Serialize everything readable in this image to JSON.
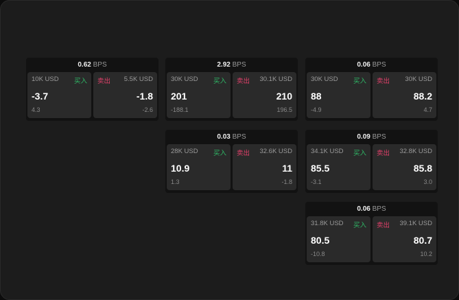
{
  "unit": "BPS",
  "buy_label": "买入",
  "sell_label": "卖出",
  "colors": {
    "buy": "#2fb866",
    "sell": "#e0406a"
  },
  "widgets": [
    {
      "spread": "0.62",
      "bid": {
        "size": "10K USD",
        "price": "-3.7",
        "change": "4.3"
      },
      "ask": {
        "size": "5.5K USD",
        "price": "-1.8",
        "change": "-2.6"
      }
    },
    {
      "spread": "2.92",
      "bid": {
        "size": "30K USD",
        "price": "201",
        "change": "-188.1"
      },
      "ask": {
        "size": "30.1K USD",
        "price": "210",
        "change": "196.5"
      }
    },
    {
      "spread": "0.06",
      "bid": {
        "size": "30K USD",
        "price": "88",
        "change": "-4.9"
      },
      "ask": {
        "size": "30K USD",
        "price": "88.2",
        "change": "4.7"
      }
    },
    {
      "spread": "0.03",
      "bid": {
        "size": "28K USD",
        "price": "10.9",
        "change": "1.3"
      },
      "ask": {
        "size": "32.6K USD",
        "price": "11",
        "change": "-1.8"
      }
    },
    {
      "spread": "0.09",
      "bid": {
        "size": "34.1K USD",
        "price": "85.5",
        "change": "-3.1"
      },
      "ask": {
        "size": "32.8K USD",
        "price": "85.8",
        "change": "3.0"
      }
    },
    {
      "spread": "0.06",
      "bid": {
        "size": "31.8K USD",
        "price": "80.5",
        "change": "-10.8"
      },
      "ask": {
        "size": "39.1K USD",
        "price": "80.7",
        "change": "10.2"
      }
    }
  ]
}
